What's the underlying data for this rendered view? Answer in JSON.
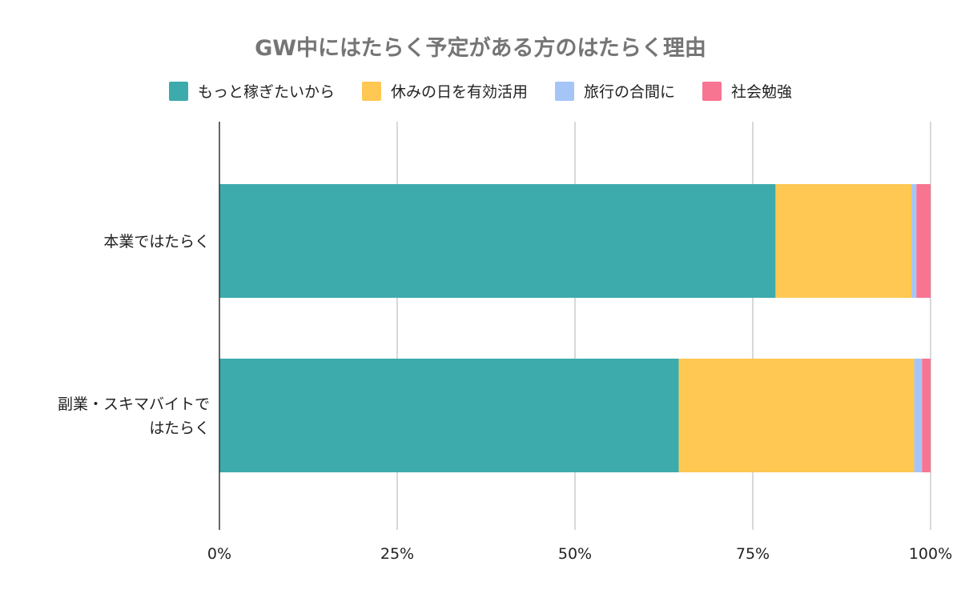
{
  "chart_data": {
    "type": "bar",
    "orientation": "horizontal",
    "stacked": "percent",
    "title": "GW中にはたらく予定がある方のはたらく理由",
    "categories": [
      [
        "本業ではたらく"
      ],
      [
        "副業・スキマバイトで",
        "はたらく"
      ]
    ],
    "series": [
      {
        "name": "もっと稼ぎたいから",
        "color": "#3DABAC",
        "values": [
          78.2,
          64.6
        ]
      },
      {
        "name": "休みの日を有効活用",
        "color": "#FFC852",
        "values": [
          19.1,
          33.1
        ]
      },
      {
        "name": "旅行の合間に",
        "color": "#A6C5F7",
        "values": [
          0.7,
          1.1
        ]
      },
      {
        "name": "社会勉強",
        "color": "#F77591",
        "values": [
          2.0,
          1.2
        ]
      }
    ],
    "xlim": [
      0,
      100
    ],
    "xticks": [
      "0%",
      "25%",
      "50%",
      "75%",
      "100%"
    ],
    "grid": true,
    "legend_position": "top"
  }
}
